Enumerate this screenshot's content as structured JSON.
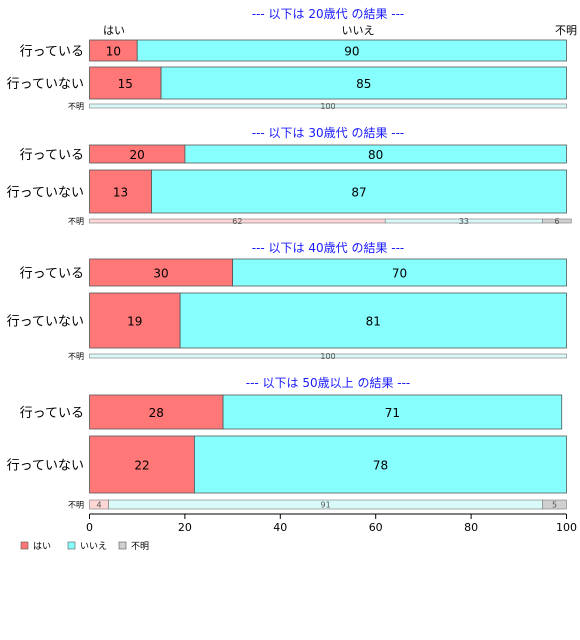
{
  "chart_data": {
    "type": "bar",
    "orientation": "horizontal",
    "stacked": "percent",
    "xlim": [
      0,
      100
    ],
    "x_ticks": [
      0,
      20,
      40,
      60,
      80,
      100
    ],
    "header_labels": [
      "はい",
      "いいえ",
      "不明"
    ],
    "legend": {
      "position": "bottom-left",
      "entries": [
        {
          "label": "はい",
          "color": "#ff7777"
        },
        {
          "label": "いいえ",
          "color": "#88ffff"
        },
        {
          "label": "不明",
          "color": "#d0d0d0"
        }
      ]
    },
    "colors": {
      "yes": "#ff7777",
      "no": "#88ffff",
      "unknown": "#d0d0d0",
      "yes_light": "#ffd6d6",
      "no_light": "#dafafa",
      "title": "#1a1aff"
    },
    "panels": [
      {
        "title": "--- 以下は 20歳代 の結果 ---",
        "rows": [
          {
            "label": "行っている",
            "values": [
              10,
              90,
              0
            ]
          },
          {
            "label": "行っていない",
            "values": [
              15,
              85,
              0
            ]
          }
        ],
        "unknown_row": {
          "label": "不明",
          "values": [
            0,
            100,
            0
          ]
        }
      },
      {
        "title": "--- 以下は 30歳代 の結果 ---",
        "rows": [
          {
            "label": "行っている",
            "values": [
              20,
              80,
              0
            ]
          },
          {
            "label": "行っていない",
            "values": [
              13,
              87,
              0
            ]
          }
        ],
        "unknown_row": {
          "label": "不明",
          "values": [
            62,
            33,
            6
          ]
        }
      },
      {
        "title": "--- 以下は 40歳代 の結果 ---",
        "rows": [
          {
            "label": "行っている",
            "values": [
              30,
              70,
              0
            ]
          },
          {
            "label": "行っていない",
            "values": [
              19,
              81,
              0
            ]
          }
        ],
        "unknown_row": {
          "label": "不明",
          "values": [
            0,
            100,
            0
          ]
        }
      },
      {
        "title": "--- 以下は 50歳以上 の結果 ---",
        "rows": [
          {
            "label": "行っている",
            "values": [
              28,
              71,
              0
            ]
          },
          {
            "label": "行っていない",
            "values": [
              22,
              78,
              0
            ]
          }
        ],
        "unknown_row": {
          "label": "不明",
          "values": [
            4,
            91,
            5
          ]
        }
      }
    ]
  }
}
